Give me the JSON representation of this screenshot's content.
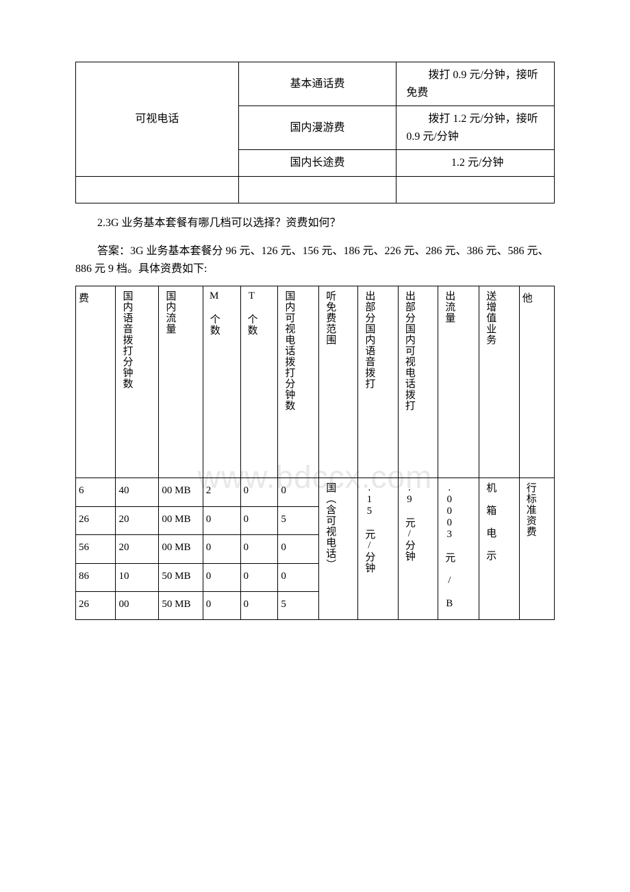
{
  "table1": {
    "rows": [
      {
        "col1": "可视电话",
        "col1_rowspan": 3,
        "col2": "基本通话费",
        "col3": "　　拨打 0.9 元/分钟，接听免费"
      },
      {
        "col2": "国内漫游费",
        "col3": "　　拨打 1.2 元/分钟，接听 0.9 元/分钟"
      },
      {
        "col2": "国内长途费",
        "col3": "1.2 元/分钟",
        "col3_center": true
      }
    ]
  },
  "question": "2.3G 业务基本套餐有哪几档可以选择？资费如何？",
  "answer": "答案：3G 业务基本套餐分 96 元、126 元、156 元、186 元、226 元、286 元、386 元、586 元、886 元 9 档。具体资费如下:",
  "table2": {
    "headers": [
      "费",
      "国内语音拨打分钟数",
      "国内流量",
      "M 个数",
      "T 个数",
      "国内可视电话拨打分钟数",
      "听免费范围",
      "出部分国内语音拨打",
      "出部分国内可视电话拨打",
      "出流量",
      "送增值业务",
      "他"
    ],
    "rows": [
      [
        "6",
        "40",
        "00 MB",
        "2",
        "0",
        "0",
        null,
        null,
        null,
        null,
        null,
        null
      ],
      [
        "26",
        "20",
        "00 MB",
        "0",
        "0",
        "5",
        null,
        null,
        null,
        null,
        null,
        null
      ],
      [
        "56",
        "20",
        "00 MB",
        "0",
        "0",
        "0",
        null,
        null,
        null,
        null,
        null,
        null
      ],
      [
        "86",
        "10",
        "50 MB",
        "0",
        "0",
        "0",
        null,
        null,
        null,
        null,
        null,
        null
      ],
      [
        "26",
        "00",
        "50 MB",
        "0",
        "0",
        "5",
        null,
        null,
        null,
        null,
        null,
        null
      ]
    ],
    "merged": {
      "col6": "国（含可视电话）",
      "col7": ".15 元/分钟",
      "col8": ".9 元/分钟",
      "col9": ".0003 元 /  B",
      "col10": "机  箱  电  示",
      "col11": "行标准资费"
    }
  },
  "watermark": "www.bdccx.com"
}
